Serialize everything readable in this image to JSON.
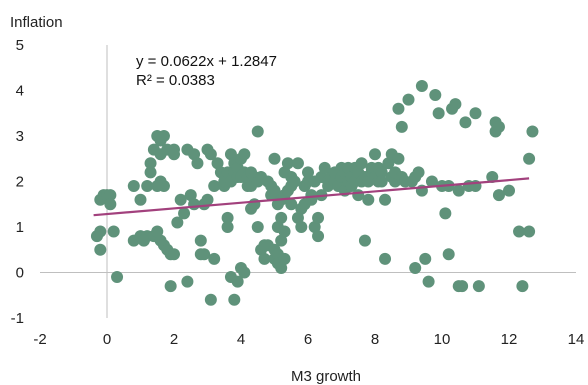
{
  "chart_data": {
    "type": "scatter",
    "ylabel": "Inflation",
    "xlabel": "M3 growth",
    "xlim": [
      -2,
      14
    ],
    "ylim": [
      -1,
      5
    ],
    "x_ticks": [
      "-2",
      "0",
      "2",
      "4",
      "6",
      "8",
      "10",
      "12",
      "14"
    ],
    "y_ticks": [
      "5",
      "4",
      "3",
      "2",
      "1",
      "0",
      "-1"
    ],
    "grid": false,
    "legend": "none",
    "colors": {
      "points": "#5f927a",
      "trendline": "#a2417d",
      "zero_axis": "#bfbfbf"
    },
    "trendline": {
      "slope": 0.0622,
      "intercept": 1.2847,
      "equation_label": "y = 0.0622x + 1.2847",
      "r2_label": "R² = 0.0383"
    },
    "series": [
      {
        "points": [
          [
            -0.3,
            0.8
          ],
          [
            -0.2,
            0.9
          ],
          [
            -0.2,
            1.6
          ],
          [
            -0.1,
            1.7
          ],
          [
            -0.2,
            0.5
          ],
          [
            0.0,
            1.7
          ],
          [
            0.1,
            1.7
          ],
          [
            0.1,
            1.5
          ],
          [
            0.2,
            0.9
          ],
          [
            0.3,
            -0.1
          ],
          [
            0.8,
            1.9
          ],
          [
            1.0,
            1.6
          ],
          [
            0.8,
            0.7
          ],
          [
            1.0,
            0.8
          ],
          [
            1.2,
            0.8
          ],
          [
            1.1,
            0.7
          ],
          [
            1.2,
            1.9
          ],
          [
            1.3,
            2.2
          ],
          [
            1.3,
            2.4
          ],
          [
            1.4,
            2.7
          ],
          [
            1.5,
            3.0
          ],
          [
            1.6,
            2.6
          ],
          [
            1.7,
            3.0
          ],
          [
            1.6,
            2.9
          ],
          [
            1.8,
            2.7
          ],
          [
            1.6,
            2.0
          ],
          [
            1.7,
            1.9
          ],
          [
            1.5,
            1.9
          ],
          [
            1.4,
            0.8
          ],
          [
            1.6,
            0.7
          ],
          [
            1.5,
            0.9
          ],
          [
            1.7,
            0.6
          ],
          [
            1.8,
            0.5
          ],
          [
            1.9,
            0.4
          ],
          [
            2.0,
            0.4
          ],
          [
            1.9,
            -0.3
          ],
          [
            2.0,
            2.7
          ],
          [
            2.0,
            2.6
          ],
          [
            2.1,
            1.1
          ],
          [
            2.3,
            1.3
          ],
          [
            2.4,
            -0.2
          ],
          [
            2.2,
            1.6
          ],
          [
            2.5,
            1.7
          ],
          [
            2.6,
            1.5
          ],
          [
            2.4,
            2.7
          ],
          [
            2.6,
            2.6
          ],
          [
            2.7,
            2.4
          ],
          [
            2.8,
            0.7
          ],
          [
            2.8,
            0.4
          ],
          [
            2.9,
            0.4
          ],
          [
            2.9,
            1.5
          ],
          [
            3.0,
            1.6
          ],
          [
            3.0,
            2.7
          ],
          [
            3.1,
            2.6
          ],
          [
            3.1,
            -0.6
          ],
          [
            3.2,
            0.3
          ],
          [
            3.2,
            1.9
          ],
          [
            3.3,
            2.4
          ],
          [
            3.4,
            2.2
          ],
          [
            3.5,
            1.9
          ],
          [
            3.5,
            2.0
          ],
          [
            3.6,
            2.2
          ],
          [
            3.6,
            1.2
          ],
          [
            3.6,
            1.0
          ],
          [
            3.7,
            2.0
          ],
          [
            3.7,
            2.6
          ],
          [
            3.8,
            2.4
          ],
          [
            3.8,
            2.2
          ],
          [
            3.7,
            -0.1
          ],
          [
            3.8,
            -0.6
          ],
          [
            3.9,
            -0.2
          ],
          [
            3.9,
            2.3
          ],
          [
            3.9,
            2.1
          ],
          [
            4.0,
            2.5
          ],
          [
            4.0,
            2.1
          ],
          [
            4.1,
            2.6
          ],
          [
            4.0,
            0.1
          ],
          [
            4.1,
            0.0
          ],
          [
            4.1,
            2.2
          ],
          [
            4.2,
            1.9
          ],
          [
            4.2,
            2.1
          ],
          [
            4.3,
            1.9
          ],
          [
            4.3,
            2.2
          ],
          [
            4.3,
            1.4
          ],
          [
            4.4,
            1.5
          ],
          [
            4.4,
            2.1
          ],
          [
            4.5,
            3.1
          ],
          [
            4.5,
            2.0
          ],
          [
            4.5,
            1.0
          ],
          [
            4.6,
            0.5
          ],
          [
            4.6,
            2.1
          ],
          [
            4.7,
            0.6
          ],
          [
            4.7,
            0.3
          ],
          [
            4.8,
            0.6
          ],
          [
            4.8,
            2.0
          ],
          [
            4.9,
            1.7
          ],
          [
            4.9,
            1.9
          ],
          [
            5.0,
            1.8
          ],
          [
            5.0,
            2.5
          ],
          [
            5.0,
            0.5
          ],
          [
            5.0,
            0.3
          ],
          [
            5.1,
            0.4
          ],
          [
            5.1,
            0.2
          ],
          [
            5.1,
            1.0
          ],
          [
            5.1,
            1.5
          ],
          [
            5.2,
            0.1
          ],
          [
            5.2,
            0.7
          ],
          [
            5.2,
            1.2
          ],
          [
            5.2,
            1.6
          ],
          [
            5.3,
            1.7
          ],
          [
            5.3,
            0.9
          ],
          [
            5.3,
            0.3
          ],
          [
            5.3,
            2.2
          ],
          [
            5.4,
            2.4
          ],
          [
            5.4,
            1.8
          ],
          [
            5.5,
            1.5
          ],
          [
            5.5,
            2.1
          ],
          [
            5.5,
            1.9
          ],
          [
            5.6,
            2.0
          ],
          [
            5.7,
            2.4
          ],
          [
            5.7,
            1.2
          ],
          [
            5.8,
            1.0
          ],
          [
            5.8,
            1.4
          ],
          [
            5.9,
            1.9
          ],
          [
            5.9,
            1.5
          ],
          [
            6.0,
            2.2
          ],
          [
            6.0,
            2.0
          ],
          [
            6.1,
            1.7
          ],
          [
            6.1,
            1.6
          ],
          [
            6.2,
            2.0
          ],
          [
            6.2,
            1.0
          ],
          [
            6.3,
            0.8
          ],
          [
            6.3,
            1.2
          ],
          [
            6.4,
            2.1
          ],
          [
            6.4,
            1.7
          ],
          [
            6.5,
            2.3
          ],
          [
            6.6,
            2.0
          ],
          [
            6.6,
            1.9
          ],
          [
            6.7,
            2.1
          ],
          [
            6.8,
            2.0
          ],
          [
            6.8,
            2.2
          ],
          [
            6.9,
            1.9
          ],
          [
            7.0,
            2.3
          ],
          [
            7.0,
            2.1
          ],
          [
            7.1,
            2.2
          ],
          [
            7.1,
            1.8
          ],
          [
            7.2,
            2.0
          ],
          [
            7.2,
            2.3
          ],
          [
            7.3,
            2.1
          ],
          [
            7.3,
            1.9
          ],
          [
            7.4,
            2.3
          ],
          [
            7.4,
            2.0
          ],
          [
            7.5,
            2.2
          ],
          [
            7.5,
            1.7
          ],
          [
            7.6,
            2.0
          ],
          [
            7.6,
            2.4
          ],
          [
            7.7,
            2.1
          ],
          [
            7.7,
            0.7
          ],
          [
            7.8,
            1.6
          ],
          [
            7.8,
            2.0
          ],
          [
            7.9,
            2.2
          ],
          [
            7.9,
            2.3
          ],
          [
            8.0,
            2.1
          ],
          [
            8.0,
            2.6
          ],
          [
            8.1,
            2.0
          ],
          [
            8.1,
            2.3
          ],
          [
            8.2,
            2.2
          ],
          [
            8.2,
            2.0
          ],
          [
            8.3,
            0.3
          ],
          [
            8.3,
            1.6
          ],
          [
            8.4,
            2.4
          ],
          [
            8.5,
            2.6
          ],
          [
            8.5,
            2.1
          ],
          [
            8.6,
            2.0
          ],
          [
            8.6,
            2.2
          ],
          [
            8.7,
            2.5
          ],
          [
            8.7,
            3.6
          ],
          [
            8.8,
            3.2
          ],
          [
            8.8,
            2.1
          ],
          [
            8.9,
            2.0
          ],
          [
            9.0,
            3.8
          ],
          [
            9.1,
            2.0
          ],
          [
            9.2,
            2.1
          ],
          [
            9.2,
            0.1
          ],
          [
            9.3,
            2.2
          ],
          [
            9.4,
            4.1
          ],
          [
            9.4,
            1.8
          ],
          [
            9.5,
            0.3
          ],
          [
            9.6,
            -0.2
          ],
          [
            9.7,
            2.0
          ],
          [
            9.8,
            3.9
          ],
          [
            9.9,
            3.5
          ],
          [
            10.0,
            1.9
          ],
          [
            10.1,
            1.3
          ],
          [
            10.2,
            1.9
          ],
          [
            10.2,
            0.4
          ],
          [
            10.3,
            3.6
          ],
          [
            10.4,
            3.7
          ],
          [
            10.5,
            1.8
          ],
          [
            10.5,
            -0.3
          ],
          [
            10.6,
            -0.3
          ],
          [
            10.7,
            3.3
          ],
          [
            10.8,
            1.9
          ],
          [
            11.0,
            1.9
          ],
          [
            11.0,
            3.5
          ],
          [
            11.1,
            -0.3
          ],
          [
            11.5,
            2.1
          ],
          [
            11.6,
            3.3
          ],
          [
            11.6,
            3.1
          ],
          [
            11.7,
            3.2
          ],
          [
            11.7,
            1.7
          ],
          [
            12.0,
            1.8
          ],
          [
            12.3,
            0.9
          ],
          [
            12.4,
            -0.3
          ],
          [
            12.6,
            2.5
          ],
          [
            12.6,
            0.9
          ],
          [
            12.7,
            3.1
          ]
        ]
      }
    ]
  }
}
